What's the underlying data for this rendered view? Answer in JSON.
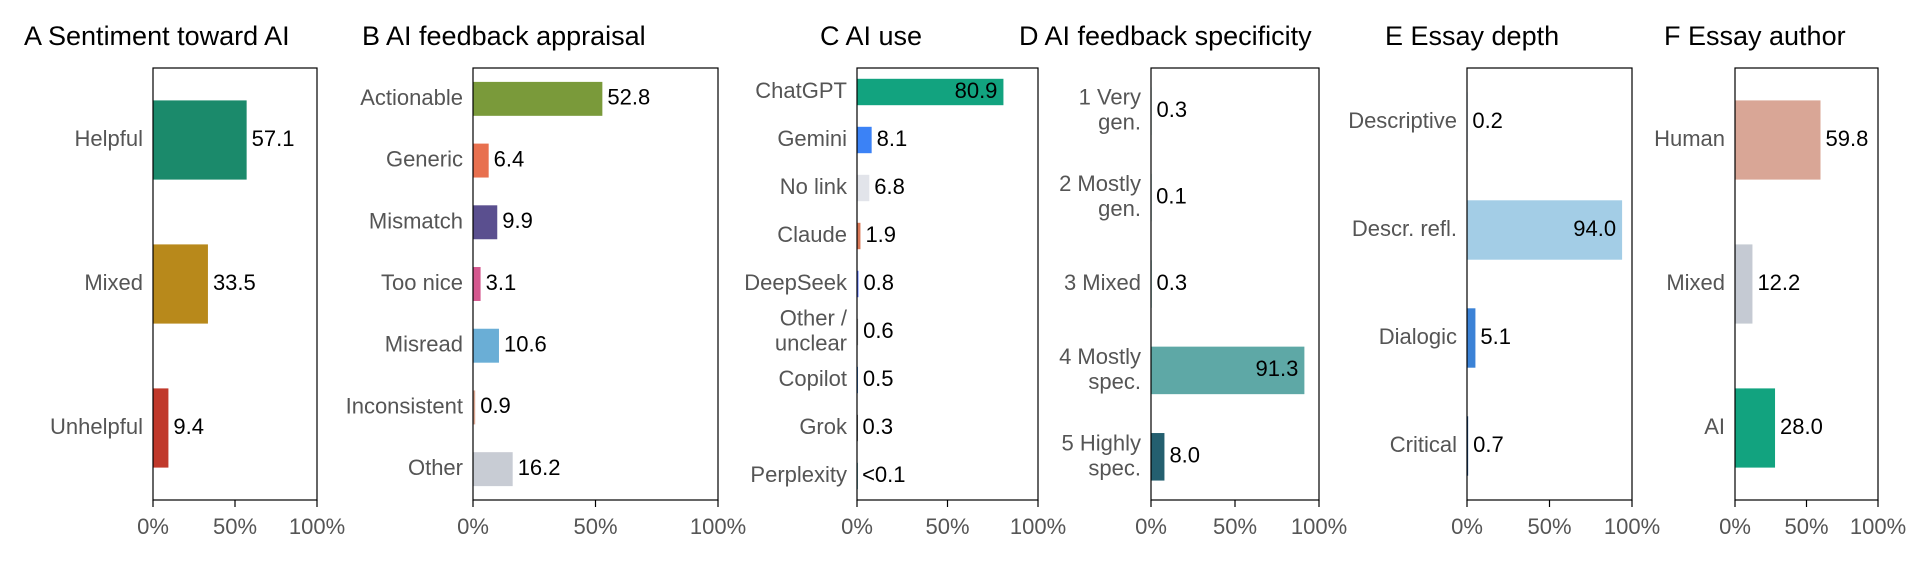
{
  "chart_data": [
    {
      "type": "bar",
      "orientation": "horizontal",
      "title": "A Sentiment toward AI",
      "categories": [
        "Helpful",
        "Mixed",
        "Unhelpful"
      ],
      "values": [
        57.1,
        33.5,
        9.4
      ],
      "labels": [
        "57.1",
        "33.5",
        "9.4"
      ],
      "colors": [
        "#1b8a6b",
        "#b8891b",
        "#c0392b"
      ],
      "xlim": [
        0,
        100
      ],
      "xticks": [
        "0%",
        "50%",
        "100%"
      ],
      "grid": false
    },
    {
      "type": "bar",
      "orientation": "horizontal",
      "title": "B AI feedback appraisal",
      "categories": [
        "Actionable",
        "Generic",
        "Mismatch",
        "Too nice",
        "Misread",
        "Inconsistent",
        "Other"
      ],
      "values": [
        52.8,
        6.4,
        9.9,
        3.1,
        10.6,
        0.9,
        16.2
      ],
      "labels": [
        "52.8",
        "6.4",
        "9.9",
        "3.1",
        "10.6",
        "0.9",
        "16.2"
      ],
      "colors": [
        "#7a9a3a",
        "#e8704f",
        "#5a4f8f",
        "#d4588f",
        "#6aaed6",
        "#d9a58f",
        "#c8ccd4"
      ],
      "xlim": [
        0,
        100
      ],
      "xticks": [
        "0%",
        "50%",
        "100%"
      ],
      "grid": false
    },
    {
      "type": "bar",
      "orientation": "horizontal",
      "title": "C  AI use",
      "categories": [
        "ChatGPT",
        "Gemini",
        "No link",
        "Claude",
        "DeepSeek",
        "Other /\nunclear",
        "Copilot",
        "Grok",
        "Perplexity"
      ],
      "values": [
        80.9,
        8.1,
        6.8,
        1.9,
        0.8,
        0.6,
        0.5,
        0.3,
        0.05
      ],
      "labels": [
        "80.9",
        "8.1",
        "6.8",
        "1.9",
        "0.8",
        "0.6",
        "0.5",
        "0.3",
        "<0.1"
      ],
      "colors": [
        "#12a37f",
        "#3b82f6",
        "#e2e4ea",
        "#d97757",
        "#4d6bfe",
        "#b0b0b0",
        "#1f6fd0",
        "#222222",
        "#20808d"
      ],
      "xlim": [
        0,
        100
      ],
      "xticks": [
        "0%",
        "50%",
        "100%"
      ],
      "grid": false
    },
    {
      "type": "bar",
      "orientation": "horizontal",
      "title": "D AI feedback specificity",
      "categories": [
        "1 Very\ngen.",
        "2 Mostly\ngen.",
        "3 Mixed",
        "4 Mostly\nspec.",
        "5 Highly\nspec."
      ],
      "values": [
        0.3,
        0.1,
        0.3,
        91.3,
        8.0
      ],
      "labels": [
        "0.3",
        "0.1",
        "0.3",
        "91.3",
        "8.0"
      ],
      "colors": [
        "#d8efec",
        "#bfe3de",
        "#99d3cb",
        "#5ea8a6",
        "#245f6f"
      ],
      "xlim": [
        0,
        100
      ],
      "xticks": [
        "0%",
        "50%",
        "100%"
      ],
      "grid": false
    },
    {
      "type": "bar",
      "orientation": "horizontal",
      "title": "E Essay depth",
      "categories": [
        "Descriptive",
        "Descr. refl.",
        "Dialogic",
        "Critical"
      ],
      "values": [
        0.2,
        94.0,
        5.1,
        0.7
      ],
      "labels": [
        "0.2",
        "94.0",
        "5.1",
        "0.7"
      ],
      "colors": [
        "#d6e8f5",
        "#a3cde6",
        "#3b82d6",
        "#1d4e89"
      ],
      "xlim": [
        0,
        100
      ],
      "xticks": [
        "0%",
        "50%",
        "100%"
      ],
      "grid": false
    },
    {
      "type": "bar",
      "orientation": "horizontal",
      "title": "F Essay author",
      "categories": [
        "Human",
        "Mixed",
        "AI"
      ],
      "values": [
        59.8,
        12.2,
        28.0
      ],
      "labels": [
        "59.8",
        "12.2",
        "28.0"
      ],
      "colors": [
        "#d9a696",
        "#c5cad3",
        "#12a37f"
      ],
      "xlim": [
        0,
        100
      ],
      "xticks": [
        "0%",
        "50%",
        "100%"
      ],
      "grid": false
    }
  ]
}
